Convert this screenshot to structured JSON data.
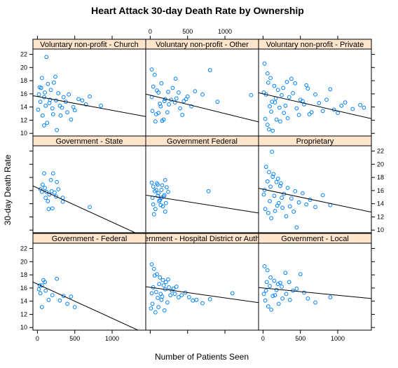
{
  "chart_data": {
    "type": "scatter",
    "title": "Heart Attack 30-day Death Rate by Ownership",
    "xlabel": "Number of Patients Seen",
    "ylabel": "30-day Death Rate",
    "xlim": [
      -60,
      1450
    ],
    "ylim": [
      9.6,
      22.8
    ],
    "x_ticks": [
      0,
      500,
      1000
    ],
    "y_ticks": [
      10,
      12,
      14,
      16,
      18,
      20,
      22
    ],
    "colors": {
      "points": "#0080ff",
      "strip": "#ffe5cc",
      "line": "#000000"
    },
    "panels": [
      {
        "name": "Voluntary non-profit - Church",
        "row": 0,
        "col": 0,
        "fit": [
          15.6,
          -0.0021
        ],
        "points": [
          [
            120,
            21.6
          ],
          [
            30,
            17
          ],
          [
            60,
            18.4
          ],
          [
            90,
            15.5
          ],
          [
            140,
            17.5
          ],
          [
            180,
            16.6
          ],
          [
            200,
            13.8
          ],
          [
            250,
            15
          ],
          [
            300,
            14.2
          ],
          [
            350,
            15.5
          ],
          [
            400,
            13.2
          ],
          [
            450,
            12.1
          ],
          [
            500,
            13.5
          ],
          [
            550,
            15.2
          ],
          [
            600,
            15
          ],
          [
            650,
            14.4
          ],
          [
            700,
            15.6
          ],
          [
            850,
            14.2
          ],
          [
            10,
            13.6
          ],
          [
            40,
            14.8
          ],
          [
            70,
            12.7
          ],
          [
            100,
            16.2
          ],
          [
            160,
            14.6
          ],
          [
            220,
            17.7
          ],
          [
            280,
            16.1
          ],
          [
            330,
            13.9
          ],
          [
            380,
            14.8
          ],
          [
            420,
            15.9
          ],
          [
            480,
            14
          ],
          [
            90,
            11.2
          ],
          [
            130,
            11.6
          ],
          [
            260,
            10.5
          ],
          [
            20,
            15.9
          ],
          [
            50,
            16.9
          ],
          [
            110,
            14.2
          ],
          [
            170,
            15.1
          ],
          [
            210,
            12.9
          ],
          [
            240,
            18.6
          ],
          [
            310,
            12.7
          ]
        ]
      },
      {
        "name": "Voluntary non-profit - Other",
        "row": 0,
        "col": 1,
        "fit": [
          15.8,
          -0.0028
        ],
        "points": [
          [
            20,
            19.7
          ],
          [
            60,
            18.9
          ],
          [
            110,
            16.2
          ],
          [
            150,
            17.6
          ],
          [
            200,
            15.2
          ],
          [
            250,
            14.4
          ],
          [
            300,
            16.9
          ],
          [
            350,
            15.3
          ],
          [
            400,
            13.8
          ],
          [
            450,
            14.9
          ],
          [
            500,
            15.6
          ],
          [
            550,
            14.1
          ],
          [
            600,
            16.4
          ],
          [
            700,
            15.9
          ],
          [
            800,
            19.6
          ],
          [
            900,
            14.8
          ],
          [
            1350,
            15.8
          ],
          [
            30,
            13.4
          ],
          [
            80,
            12.9
          ],
          [
            130,
            14.5
          ],
          [
            180,
            12.1
          ],
          [
            230,
            13.2
          ],
          [
            280,
            15.1
          ],
          [
            330,
            14.7
          ],
          [
            380,
            16.2
          ],
          [
            430,
            12.8
          ],
          [
            480,
            15.2
          ],
          [
            40,
            17.1
          ],
          [
            90,
            16.5
          ],
          [
            140,
            14.1
          ],
          [
            190,
            14.9
          ],
          [
            240,
            16.3
          ],
          [
            70,
            11.8
          ],
          [
            160,
            11.9
          ],
          [
            340,
            18.3
          ],
          [
            20,
            15.5
          ],
          [
            110,
            13.1
          ]
        ]
      },
      {
        "name": "Voluntary non-profit - Private",
        "row": 0,
        "col": 2,
        "fit": [
          16.0,
          -0.0026
        ],
        "points": [
          [
            20,
            20.6
          ],
          [
            60,
            19.1
          ],
          [
            100,
            18.4
          ],
          [
            150,
            17.2
          ],
          [
            200,
            16.6
          ],
          [
            250,
            15.8
          ],
          [
            300,
            14.2
          ],
          [
            350,
            15.5
          ],
          [
            400,
            16.1
          ],
          [
            450,
            13.8
          ],
          [
            500,
            15.1
          ],
          [
            550,
            14.4
          ],
          [
            600,
            16.8
          ],
          [
            650,
            13.2
          ],
          [
            700,
            15.9
          ],
          [
            750,
            14.6
          ],
          [
            800,
            13.4
          ],
          [
            850,
            15.1
          ],
          [
            900,
            16.7
          ],
          [
            950,
            13.6
          ],
          [
            1000,
            13.1
          ],
          [
            1050,
            14.2
          ],
          [
            1100,
            14.7
          ],
          [
            1200,
            13.7
          ],
          [
            1300,
            14.3
          ],
          [
            1350,
            13.9
          ],
          [
            30,
            12.2
          ],
          [
            80,
            10.6
          ],
          [
            130,
            10.4
          ],
          [
            180,
            12.1
          ],
          [
            230,
            11.8
          ],
          [
            280,
            13.1
          ],
          [
            330,
            12.3
          ],
          [
            380,
            18.3
          ],
          [
            430,
            17.6
          ],
          [
            480,
            12.8
          ],
          [
            530,
            14.9
          ],
          [
            580,
            17.3
          ],
          [
            620,
            12.9
          ],
          [
            40,
            15.9
          ],
          [
            120,
            14.8
          ],
          [
            170,
            15.3
          ],
          [
            220,
            13.9
          ],
          [
            270,
            16.9
          ],
          [
            320,
            17.8
          ],
          [
            60,
            11.3
          ],
          [
            90,
            14.1
          ],
          [
            160,
            14.7
          ],
          [
            10,
            16.2
          ],
          [
            70,
            17.7
          ],
          [
            110,
            13.3
          ]
        ]
      },
      {
        "name": "Government - State",
        "row": 1,
        "col": 0,
        "fit": [
          16.4,
          -0.0052
        ],
        "points": [
          [
            90,
            18.6
          ],
          [
            210,
            18.6
          ],
          [
            180,
            17.6
          ],
          [
            260,
            17.3
          ],
          [
            40,
            16.2
          ],
          [
            70,
            16.9
          ],
          [
            100,
            16.4
          ],
          [
            120,
            15.8
          ],
          [
            140,
            14.4
          ],
          [
            160,
            15.4
          ],
          [
            190,
            15.9
          ],
          [
            230,
            15.7
          ],
          [
            250,
            15.1
          ],
          [
            280,
            16.2
          ],
          [
            340,
            14.9
          ],
          [
            150,
            13.2
          ],
          [
            200,
            13.3
          ],
          [
            340,
            14.3
          ],
          [
            700,
            13.5
          ],
          [
            60,
            15.8
          ],
          [
            110,
            14.9
          ]
        ]
      },
      {
        "name": "Government Federal",
        "row": 1,
        "col": 1,
        "fit": [
          15.2,
          -0.0018
        ],
        "points": [
          [
            20,
            17.2
          ],
          [
            40,
            16.6
          ],
          [
            60,
            15.9
          ],
          [
            80,
            16.1
          ],
          [
            100,
            15.2
          ],
          [
            120,
            14.4
          ],
          [
            140,
            13.8
          ],
          [
            160,
            16.8
          ],
          [
            180,
            15.1
          ],
          [
            200,
            17.6
          ],
          [
            220,
            16.5
          ],
          [
            30,
            14.9
          ],
          [
            50,
            12.4
          ],
          [
            70,
            13.2
          ],
          [
            90,
            17.1
          ],
          [
            110,
            15.6
          ],
          [
            130,
            14.6
          ],
          [
            150,
            16.1
          ],
          [
            170,
            13.6
          ],
          [
            190,
            15.3
          ],
          [
            210,
            14.1
          ],
          [
            240,
            15.8
          ],
          [
            780,
            15.9
          ],
          [
            40,
            13.9
          ],
          [
            100,
            16.9
          ],
          [
            150,
            14.9
          ],
          [
            200,
            12.8
          ]
        ]
      },
      {
        "name": "Proprietary",
        "row": 1,
        "col": 2,
        "fit": [
          16.2,
          -0.0024
        ],
        "points": [
          [
            120,
            21.9
          ],
          [
            40,
            19.6
          ],
          [
            80,
            18.8
          ],
          [
            130,
            18.1
          ],
          [
            180,
            17.3
          ],
          [
            230,
            16.7
          ],
          [
            280,
            15.5
          ],
          [
            330,
            16.4
          ],
          [
            380,
            14.8
          ],
          [
            430,
            15.9
          ],
          [
            480,
            14.2
          ],
          [
            530,
            15.6
          ],
          [
            580,
            13.9
          ],
          [
            630,
            14.6
          ],
          [
            700,
            13.5
          ],
          [
            800,
            15.3
          ],
          [
            900,
            13.8
          ],
          [
            30,
            13.2
          ],
          [
            70,
            12.6
          ],
          [
            110,
            11.8
          ],
          [
            160,
            12.9
          ],
          [
            210,
            14.1
          ],
          [
            260,
            13.4
          ],
          [
            310,
            12.1
          ],
          [
            360,
            13.6
          ],
          [
            410,
            12.8
          ],
          [
            450,
            10.4
          ],
          [
            60,
            17.4
          ],
          [
            100,
            16.6
          ],
          [
            150,
            15.2
          ],
          [
            200,
            17.8
          ],
          [
            250,
            14.9
          ],
          [
            20,
            16.1
          ],
          [
            90,
            14.4
          ],
          [
            140,
            18.5
          ],
          [
            190,
            13.7
          ],
          [
            240,
            17.1
          ],
          [
            10,
            15.4
          ]
        ]
      },
      {
        "name": "Government - Federal",
        "row": 2,
        "col": 0,
        "fit": [
          16.6,
          -0.0052
        ],
        "points": [
          [
            20,
            15.8
          ],
          [
            40,
            15.2
          ],
          [
            60,
            16.4
          ],
          [
            80,
            17.2
          ],
          [
            100,
            16.9
          ],
          [
            60,
            13.1
          ],
          [
            150,
            14.2
          ],
          [
            200,
            14.9
          ],
          [
            260,
            17.4
          ],
          [
            300,
            14.1
          ],
          [
            350,
            14.8
          ],
          [
            400,
            13.6
          ],
          [
            450,
            14.7
          ],
          [
            500,
            13.1
          ],
          [
            30,
            16.4
          ],
          [
            110,
            15.6
          ]
        ]
      },
      {
        "name": "Government - Hospital District or Authority",
        "row": 2,
        "col": 1,
        "fit": [
          16.1,
          -0.0016
        ],
        "points": [
          [
            20,
            19.6
          ],
          [
            50,
            18.9
          ],
          [
            90,
            18.1
          ],
          [
            130,
            17.6
          ],
          [
            170,
            17.2
          ],
          [
            210,
            16.9
          ],
          [
            250,
            16.1
          ],
          [
            290,
            15.6
          ],
          [
            330,
            15.1
          ],
          [
            380,
            14.6
          ],
          [
            420,
            14.9
          ],
          [
            470,
            15.3
          ],
          [
            520,
            14.6
          ],
          [
            570,
            14.1
          ],
          [
            620,
            14.2
          ],
          [
            700,
            13.7
          ],
          [
            800,
            14.3
          ],
          [
            1100,
            15.2
          ],
          [
            30,
            13.6
          ],
          [
            70,
            12.3
          ],
          [
            110,
            13.1
          ],
          [
            150,
            14.2
          ],
          [
            190,
            12.6
          ],
          [
            230,
            13.8
          ],
          [
            270,
            14.9
          ],
          [
            310,
            15.9
          ],
          [
            350,
            16.2
          ],
          [
            40,
            16.1
          ],
          [
            80,
            15.4
          ],
          [
            120,
            16.6
          ],
          [
            160,
            14.7
          ],
          [
            200,
            15.8
          ],
          [
            240,
            17.3
          ],
          [
            60,
            17.9
          ],
          [
            100,
            14.5
          ],
          [
            140,
            15.1
          ],
          [
            180,
            16.4
          ],
          [
            20,
            15.2
          ],
          [
            10,
            12.9
          ]
        ]
      },
      {
        "name": "Government - Local",
        "row": 2,
        "col": 2,
        "fit": [
          16.0,
          -0.0011
        ],
        "points": [
          [
            20,
            19.3
          ],
          [
            60,
            18.7
          ],
          [
            100,
            17.6
          ],
          [
            150,
            17.1
          ],
          [
            200,
            16.6
          ],
          [
            250,
            16.2
          ],
          [
            300,
            18.3
          ],
          [
            350,
            16.9
          ],
          [
            400,
            15.6
          ],
          [
            450,
            15.9
          ],
          [
            500,
            18.1
          ],
          [
            550,
            15.3
          ],
          [
            600,
            14.4
          ],
          [
            700,
            13.8
          ],
          [
            900,
            14.6
          ],
          [
            30,
            14.1
          ],
          [
            70,
            13.2
          ],
          [
            110,
            12.7
          ],
          [
            160,
            14.9
          ],
          [
            210,
            13.6
          ],
          [
            260,
            14.4
          ],
          [
            310,
            15.1
          ],
          [
            360,
            14.2
          ],
          [
            40,
            15.6
          ],
          [
            90,
            16.3
          ],
          [
            130,
            14.8
          ],
          [
            180,
            15.7
          ],
          [
            230,
            16.8
          ],
          [
            10,
            15.1
          ],
          [
            50,
            16.9
          ]
        ]
      }
    ]
  }
}
